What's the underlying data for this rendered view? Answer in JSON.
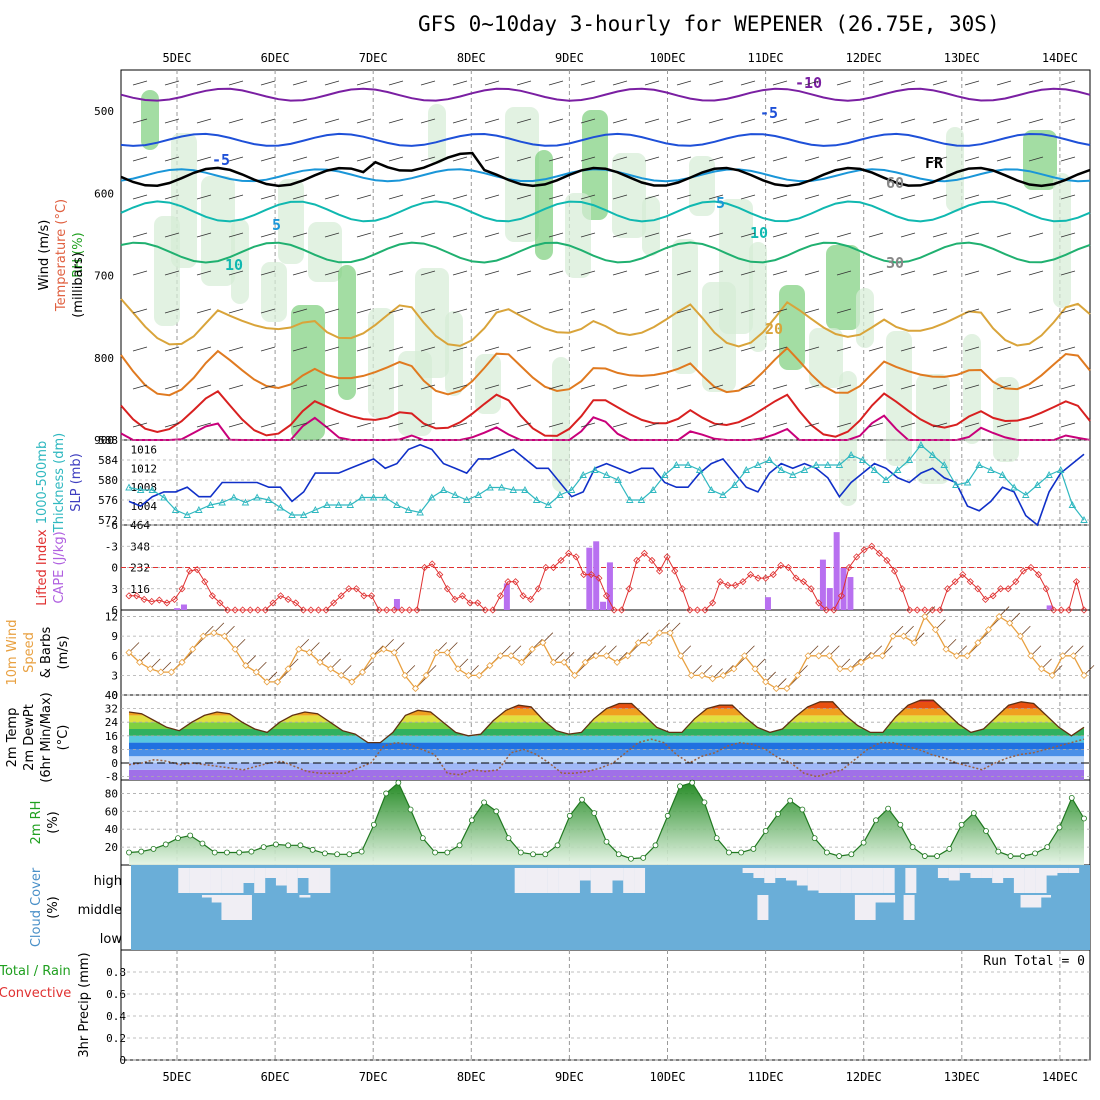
{
  "title": "GFS 0~10day 3-hourly for WEPENER (26.75E, 30S)",
  "dates": [
    "5DEC",
    "6DEC",
    "7DEC",
    "8DEC",
    "9DEC",
    "10DEC",
    "11DEC",
    "12DEC",
    "13DEC",
    "14DEC"
  ],
  "colors": {
    "temp_contours": [
      "#7a1fa2",
      "#1e50d8",
      "#1a96d8",
      "#10b8b0",
      "#20b070",
      "#d9a43a",
      "#e07a20",
      "#d82020",
      "#c8007a"
    ],
    "freezing": "#000000",
    "thickness": "#30b8c0",
    "slp": "#1030c8",
    "cape_bar": "#b870f0",
    "lifted_index": "#e03030",
    "wind_speed": "#e8a040",
    "wind_barb": "#704020",
    "rh_line": "#207820",
    "rh_fill": "#30b030",
    "cloud_bg": "#6aaed8",
    "cloud_fill": "#f0eef4",
    "dewpoint": "#9a6040"
  },
  "chart_data": [
    {
      "type": "contour",
      "panel": "upper-air",
      "ylabel": "(millibars)",
      "side_labels": [
        "Wind (m/s)",
        "Temperature (°C)",
        "RH (%)"
      ],
      "yticks": [
        500,
        600,
        700,
        800,
        900
      ],
      "ylim": [
        450,
        900
      ],
      "contour_labels": [
        "-10",
        "-5",
        "FR",
        "-5",
        "5",
        "5",
        "10",
        "10",
        "20",
        "30",
        "60"
      ],
      "temperature_levels_c": [
        -10,
        -5,
        0,
        5,
        10,
        15,
        20,
        25,
        30
      ],
      "temperature_pressure_mb": [
        480,
        535,
        578,
        622,
        672,
        740,
        800,
        850,
        880
      ]
    },
    {
      "type": "line",
      "panel": "thickness-slp",
      "side_labels": [
        "1000-500mb",
        "Thickness (dm)",
        "SLP (mb)"
      ],
      "yticks_left": [
        572,
        576,
        580,
        584,
        588
      ],
      "yticks_right": [
        1004,
        1008,
        1012,
        1016
      ],
      "ylim_left": [
        571,
        588
      ],
      "ylim_right": [
        1000,
        1018
      ],
      "series": [
        {
          "name": "SLP (mb)",
          "axis": "right",
          "values": [
            1005,
            1004,
            1006,
            1007,
            1007,
            1008,
            1006,
            1006,
            1009,
            1009,
            1009,
            1009,
            1008,
            1008,
            1005,
            1007,
            1011,
            1011,
            1011,
            1012,
            1013,
            1014,
            1012,
            1013,
            1016,
            1017,
            1016,
            1013,
            1012,
            1011,
            1014,
            1014,
            1015,
            1016,
            1014,
            1012,
            1012,
            1009,
            1006,
            1007,
            1012,
            1013,
            1012,
            1011,
            1012,
            1012,
            1009,
            1008,
            1008,
            1011,
            1013,
            1014,
            1011,
            1008,
            1007,
            1011,
            1013,
            1012,
            1013,
            1012,
            1010,
            1006,
            1009,
            1011,
            1013,
            1012,
            1010,
            1009,
            1011,
            1012,
            1010,
            1009,
            1004,
            1003,
            1005,
            1008,
            1007,
            1002,
            1000,
            1007,
            1011,
            1013,
            1015
          ]
        },
        {
          "name": "Thickness (dm)",
          "axis": "left",
          "values": [
            578.5,
            578,
            578,
            576.5,
            574,
            573,
            574,
            575,
            575.5,
            576.5,
            575.5,
            576.5,
            576,
            574.5,
            573,
            573,
            574,
            575,
            575,
            575,
            576.5,
            576.5,
            576.5,
            575,
            574,
            573.5,
            576.5,
            578,
            577,
            576,
            577,
            578.5,
            578.5,
            578,
            578,
            576,
            575,
            577,
            578,
            581,
            582,
            581,
            580,
            576,
            576,
            578,
            581,
            583,
            583,
            582,
            578,
            577,
            579,
            582,
            583,
            584,
            582,
            581,
            582,
            583,
            583,
            583,
            585,
            584,
            582,
            580,
            582,
            584,
            587,
            585,
            583,
            579,
            579.5,
            583,
            582,
            581,
            578.5,
            577,
            579,
            581,
            582,
            575,
            572
          ]
        }
      ]
    },
    {
      "type": "bar",
      "panel": "cape-li",
      "side_labels": [
        "Lifted Index",
        "CAPE (J/kg)"
      ],
      "yticks_left": [
        -6,
        -3,
        0,
        3,
        6
      ],
      "yticks_right": [
        116,
        232,
        348,
        464
      ],
      "ylim_left": [
        6,
        -6
      ],
      "ylim_right": [
        0,
        464
      ],
      "series": [
        {
          "name": "CAPE (J/kg)",
          "values": [
            0,
            0,
            0,
            0,
            0,
            0,
            0,
            10,
            30,
            0,
            0,
            0,
            0,
            0,
            0,
            0,
            0,
            0,
            0,
            0,
            0,
            0,
            0,
            0,
            0,
            0,
            0,
            0,
            0,
            0,
            0,
            0,
            0,
            0,
            0,
            0,
            0,
            0,
            0,
            60,
            0,
            0,
            0,
            0,
            0,
            0,
            0,
            0,
            0,
            0,
            0,
            0,
            0,
            0,
            0,
            145,
            0,
            0,
            0,
            0,
            0,
            0,
            0,
            0,
            0,
            0,
            0,
            340,
            375,
            45,
            260,
            0,
            0,
            0,
            0,
            0,
            0,
            0,
            0,
            0,
            0,
            0,
            0,
            0,
            0,
            0,
            0,
            0,
            0,
            0,
            0,
            0,
            0,
            70,
            0,
            0,
            0,
            0,
            0,
            0,
            0,
            275,
            120,
            425,
            230,
            180,
            0,
            0,
            0,
            0,
            0,
            0,
            0,
            0,
            0,
            0,
            0,
            0,
            0,
            0,
            0,
            0,
            0,
            0,
            0,
            0,
            0,
            0,
            0,
            0,
            0,
            0,
            0,
            0,
            25,
            0,
            0,
            0,
            0,
            0
          ]
        },
        {
          "name": "Lifted Index",
          "values": [
            4,
            4,
            4.5,
            4.8,
            4.6,
            5,
            4.5,
            3,
            0.5,
            0.3,
            2,
            4,
            5,
            6,
            6,
            6,
            6,
            6,
            6,
            5,
            4,
            4.5,
            5,
            6,
            6,
            6,
            6,
            5,
            4,
            3,
            3,
            4,
            4,
            6,
            6,
            6,
            6,
            6,
            6,
            0,
            -0.5,
            1,
            3,
            4.5,
            4,
            5,
            5,
            6,
            6,
            4,
            2,
            2,
            4,
            4.5,
            3,
            0,
            0,
            -1,
            -2,
            -1.5,
            1,
            1,
            1.5,
            4,
            6,
            6,
            3,
            -1,
            -2,
            -1,
            0.5,
            -1.5,
            0.5,
            3,
            6,
            6,
            6,
            5,
            2,
            2.5,
            2.5,
            2,
            1,
            1.5,
            1.5,
            1,
            -0.3,
            0,
            1.5,
            2,
            3,
            5,
            6,
            6,
            4,
            0,
            -1.5,
            -2.5,
            -3,
            -2,
            -1,
            0.5,
            3,
            6,
            6,
            6,
            6,
            6,
            3,
            2,
            1,
            2,
            3,
            4.5,
            4,
            3,
            3,
            2,
            0.5,
            0,
            1,
            3,
            6,
            6,
            6,
            2,
            6
          ]
        }
      ]
    },
    {
      "type": "line",
      "panel": "wind-10m",
      "side_labels": [
        "10m Wind",
        "Speed",
        "& Barbs",
        "(m/s)"
      ],
      "yticks": [
        0,
        3,
        6,
        9,
        12
      ],
      "ylim": [
        0,
        13
      ],
      "series": [
        {
          "name": "Speed",
          "values": [
            6.5,
            5,
            4,
            3.5,
            3.5,
            5,
            7,
            9,
            9.5,
            9,
            7,
            4.5,
            3.5,
            2,
            2,
            4,
            7,
            6.5,
            5,
            4,
            3,
            2,
            3.5,
            6,
            7,
            6.5,
            3,
            1,
            3,
            6.5,
            6.5,
            4,
            3,
            3,
            4.5,
            6,
            6,
            5,
            7,
            8,
            5,
            5,
            3,
            5,
            6,
            6,
            5,
            6,
            8,
            8,
            9.5,
            9.5,
            6,
            3,
            3,
            2.5,
            3,
            4,
            6,
            4,
            2,
            1,
            1,
            3,
            6,
            6,
            6,
            4,
            4,
            5,
            6,
            6,
            9,
            9,
            8,
            12,
            10,
            7,
            6,
            6,
            8,
            10,
            12,
            11,
            9,
            6,
            4,
            3,
            6,
            6,
            3
          ]
        }
      ]
    },
    {
      "type": "area",
      "panel": "temp-2m",
      "side_labels": [
        "2m Temp",
        "2m DewPt",
        "(6hr Min/Max)",
        "(°C)"
      ],
      "yticks": [
        -8,
        0,
        8,
        16,
        24,
        32,
        40
      ],
      "ylim": [
        -10,
        40
      ],
      "series": [
        {
          "name": "2m Temp",
          "values": [
            30,
            29,
            25,
            21,
            19,
            24,
            28,
            30,
            29,
            24,
            20,
            18,
            24,
            28,
            30,
            29,
            24,
            19,
            17,
            12,
            12,
            18,
            28,
            31,
            30,
            24,
            18,
            16,
            17,
            25,
            31,
            34,
            33,
            25,
            19,
            17,
            18,
            26,
            32,
            35,
            35,
            28,
            21,
            18,
            18,
            26,
            32,
            34,
            34,
            27,
            21,
            18,
            20,
            27,
            33,
            36,
            36,
            28,
            22,
            18,
            18,
            27,
            34,
            37,
            37,
            30,
            23,
            18,
            20,
            27,
            34,
            36,
            35,
            28,
            21,
            16,
            21
          ]
        },
        {
          "name": "2m DewPt",
          "values": [
            -1,
            0,
            2,
            1,
            -1,
            0,
            -1,
            -2,
            -3,
            -4,
            -2,
            0,
            1,
            -2,
            -5,
            -6,
            -6,
            -6,
            -3,
            0,
            10,
            12,
            11,
            8,
            5,
            -6,
            -7,
            -4,
            -5,
            -4,
            6,
            8,
            5,
            0,
            -6,
            -6,
            -5,
            -3,
            0,
            6,
            12,
            14,
            12,
            5,
            0,
            4,
            6,
            10,
            12,
            11,
            8,
            3,
            0,
            -6,
            -8,
            -6,
            -4,
            2,
            8,
            12,
            12,
            10,
            8,
            5,
            3,
            0,
            -2,
            -4,
            0,
            3,
            5,
            6,
            8,
            10,
            12,
            14
          ]
        }
      ]
    },
    {
      "type": "area",
      "panel": "rh-2m",
      "side_labels": [
        "2m RH",
        "(%)"
      ],
      "yticks": [
        20,
        40,
        60,
        80
      ],
      "ylim": [
        0,
        95
      ],
      "series": [
        {
          "name": "2m RH",
          "values": [
            14,
            15,
            18,
            23,
            30,
            33,
            24,
            14,
            14,
            14,
            15,
            20,
            23,
            22,
            22,
            17,
            13,
            12,
            12,
            15,
            45,
            80,
            92,
            62,
            30,
            14,
            14,
            22,
            50,
            70,
            60,
            30,
            14,
            12,
            12,
            22,
            55,
            73,
            58,
            26,
            12,
            7,
            8,
            22,
            55,
            88,
            92,
            70,
            30,
            14,
            14,
            18,
            38,
            57,
            72,
            62,
            30,
            14,
            10,
            12,
            25,
            50,
            63,
            45,
            20,
            10,
            10,
            18,
            45,
            58,
            38,
            15,
            10,
            10,
            13,
            20,
            42,
            75,
            52
          ]
        }
      ]
    },
    {
      "type": "bar",
      "panel": "cloud-cover",
      "side_labels": [
        "Cloud Cover",
        "(%)"
      ],
      "ytick_labels": [
        "high",
        "middle",
        "low"
      ],
      "series": [
        {
          "name": "high",
          "values": [
            0,
            0,
            0,
            0,
            0,
            100,
            100,
            100,
            100,
            100,
            100,
            60,
            100,
            40,
            70,
            100,
            40,
            100,
            100,
            0,
            0,
            0,
            0,
            0,
            0,
            0,
            0,
            0,
            0,
            0,
            0,
            0,
            0,
            0,
            0,
            0,
            100,
            100,
            100,
            100,
            100,
            100,
            50,
            100,
            100,
            50,
            100,
            100,
            0,
            0,
            0,
            0,
            0,
            0,
            0,
            0,
            0,
            20,
            40,
            60,
            40,
            50,
            70,
            90,
            100,
            100,
            100,
            100,
            100,
            100,
            100,
            0,
            100,
            0,
            0,
            40,
            50,
            20,
            40,
            40,
            60,
            40,
            100,
            100,
            100,
            30,
            20,
            20,
            0
          ]
        },
        {
          "name": "middle",
          "values": [
            0,
            0,
            0,
            0,
            0,
            0,
            0,
            0,
            10,
            30,
            100,
            100,
            100,
            0,
            0,
            0,
            0,
            0,
            10,
            0,
            0,
            0,
            0,
            0,
            0,
            0,
            0,
            0,
            0,
            0,
            0,
            0,
            0,
            0,
            0,
            0,
            0,
            0,
            0,
            0,
            0,
            0,
            0,
            0,
            0,
            0,
            0,
            0,
            0,
            0,
            0,
            0,
            0,
            0,
            0,
            0,
            0,
            0,
            0,
            0,
            0,
            0,
            0,
            0,
            0,
            100,
            0,
            0,
            0,
            0,
            0,
            0,
            0,
            0,
            0,
            100,
            100,
            30,
            30,
            0,
            100,
            0,
            0,
            0,
            0,
            0,
            0,
            0,
            0,
            0,
            0,
            0,
            50,
            50,
            10,
            0,
            0,
            0,
            0
          ]
        }
      ]
    },
    {
      "type": "bar",
      "panel": "precip-3hr",
      "side_labels": [
        "Total / Rain",
        "Convective",
        "3hr Precip (mm)"
      ],
      "annotation": "Run Total = 0",
      "yticks": [
        0,
        0.2,
        0.4,
        0.6,
        0.8
      ],
      "ylim": [
        0,
        1
      ],
      "series": []
    }
  ]
}
